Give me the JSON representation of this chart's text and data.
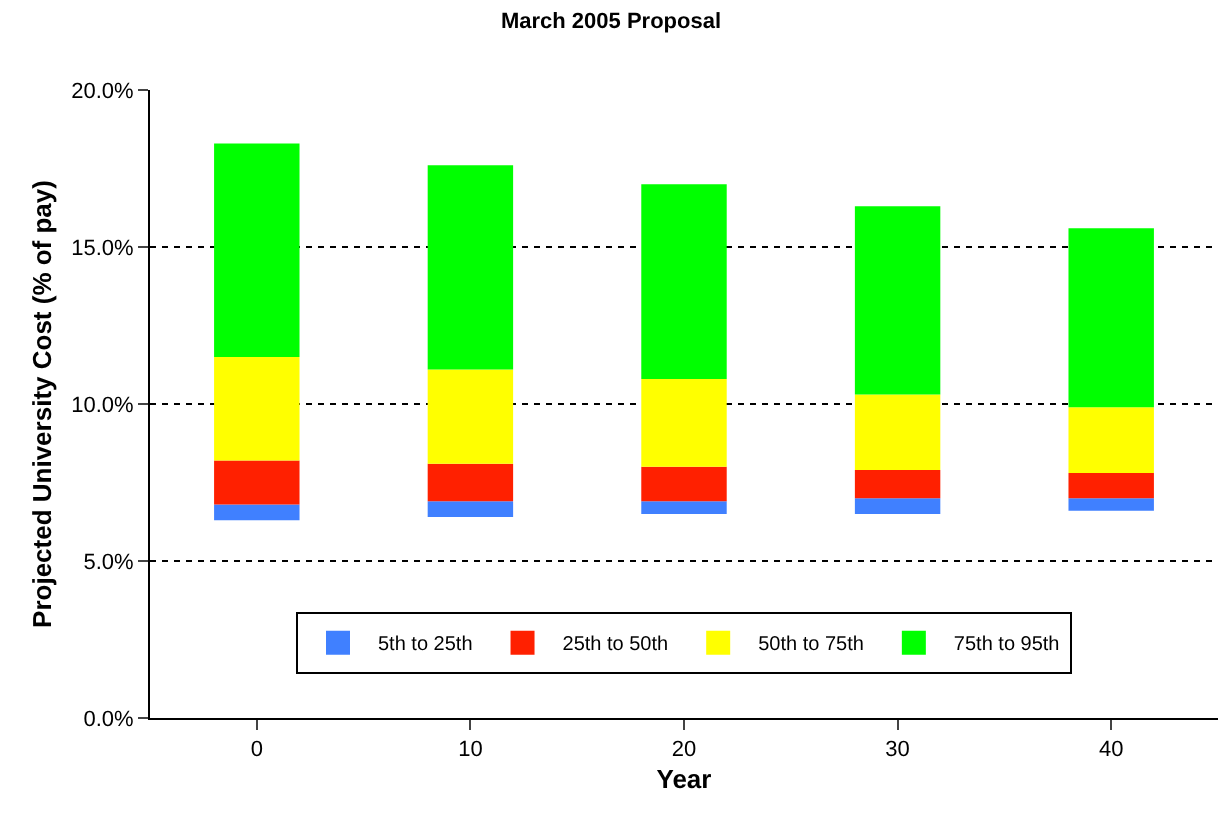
{
  "chart_data": {
    "type": "bar",
    "title": "March 2005 Proposal",
    "xlabel": "Year",
    "ylabel": "Projected University Cost (% of pay)",
    "categories": [
      "0",
      "10",
      "20",
      "30",
      "40"
    ],
    "series": [
      {
        "name": "5th to 25th",
        "color": "#4080ff",
        "base": [
          6.3,
          6.4,
          6.5,
          6.5,
          6.6
        ],
        "values": [
          0.5,
          0.5,
          0.4,
          0.5,
          0.4
        ]
      },
      {
        "name": "25th to 50th",
        "color": "#ff2000",
        "base": [
          6.8,
          6.9,
          6.9,
          7.0,
          7.0
        ],
        "values": [
          1.4,
          1.2,
          1.1,
          0.9,
          0.8
        ]
      },
      {
        "name": "50th to 75th",
        "color": "#ffff00",
        "base": [
          8.2,
          8.1,
          8.0,
          7.9,
          7.8
        ],
        "values": [
          3.3,
          3.0,
          2.8,
          2.4,
          2.1
        ]
      },
      {
        "name": "75th to 95th",
        "color": "#00ff00",
        "base": [
          11.5,
          11.1,
          10.8,
          10.3,
          9.9
        ],
        "values": [
          6.8,
          6.5,
          6.2,
          6.0,
          5.7
        ]
      }
    ],
    "ylim": [
      0,
      20
    ],
    "yticks": [
      {
        "value": 0,
        "label": "0.0%"
      },
      {
        "value": 5,
        "label": "5.0%"
      },
      {
        "value": 10,
        "label": "10.0%"
      },
      {
        "value": 15,
        "label": "15.0%"
      },
      {
        "value": 20,
        "label": "20.0%"
      }
    ],
    "grid": "y",
    "legend": "bottom"
  }
}
